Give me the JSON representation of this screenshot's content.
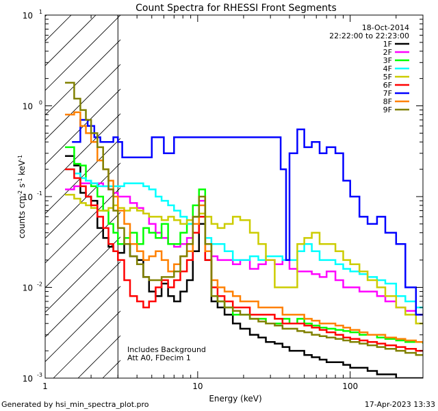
{
  "chart_data": {
    "type": "line",
    "title": "Count Spectra for RHESSI Front Segments",
    "xlabel": "Energy (keV)",
    "ylabel": "counts cm-2 s-1 keV-1",
    "xscale": "log",
    "yscale": "log",
    "xlim": [
      1,
      300
    ],
    "ylim": [
      0.001,
      10
    ],
    "x_ticks": [
      {
        "value": 1,
        "label": "1"
      },
      {
        "value": 10,
        "label": "10"
      },
      {
        "value": 100,
        "label": "100"
      }
    ],
    "y_ticks": [
      {
        "value": 10,
        "label": "10",
        "exp": "1"
      },
      {
        "value": 1,
        "label": "10",
        "exp": "0"
      },
      {
        "value": 0.1,
        "label": "10",
        "exp": "-1"
      },
      {
        "value": 0.01,
        "label": "10",
        "exp": "-2"
      },
      {
        "value": 0.001,
        "label": "10",
        "exp": "-3"
      }
    ],
    "date": "18-Oct-2014",
    "time_range": "22:22:00 to 22:23:00",
    "shaded_region_keV": [
      1,
      3
    ],
    "annotations": [
      "Includes Background",
      "Att A0, FDecim 1"
    ],
    "series": [
      {
        "name": "1F",
        "color": "#000000",
        "x": [
          1.35,
          1.55,
          1.7,
          1.85,
          2.0,
          2.2,
          2.4,
          2.6,
          2.8,
          3.0,
          3.3,
          3.6,
          4.0,
          4.4,
          4.8,
          5.3,
          5.8,
          6.4,
          7.0,
          7.7,
          8.5,
          9.3,
          10.2,
          11.2,
          12.3,
          13.5,
          15,
          17,
          19,
          22,
          25,
          28,
          32,
          36,
          40,
          45,
          50,
          56,
          63,
          70,
          80,
          90,
          100,
          115,
          130,
          150,
          170,
          200,
          230,
          270,
          300
        ],
        "y": [
          0.28,
          0.22,
          0.11,
          0.1,
          0.09,
          0.045,
          0.035,
          0.028,
          0.025,
          0.024,
          0.03,
          0.022,
          0.02,
          0.013,
          0.009,
          0.008,
          0.011,
          0.008,
          0.007,
          0.009,
          0.012,
          0.025,
          0.05,
          0.02,
          0.007,
          0.006,
          0.005,
          0.004,
          0.0035,
          0.003,
          0.0028,
          0.0025,
          0.0024,
          0.0022,
          0.002,
          0.002,
          0.0018,
          0.0017,
          0.0016,
          0.0015,
          0.0015,
          0.0014,
          0.0013,
          0.0013,
          0.0012,
          0.0011,
          0.0011,
          0.001,
          0.001,
          0.001,
          0.001
        ]
      },
      {
        "name": "2F",
        "color": "#ff00ff",
        "x": [
          1.35,
          1.55,
          1.7,
          1.85,
          2.0,
          2.2,
          2.4,
          2.6,
          2.8,
          3.0,
          3.3,
          3.6,
          4.0,
          4.4,
          4.8,
          5.3,
          5.8,
          6.4,
          7.0,
          7.7,
          8.5,
          9.3,
          10.2,
          11.2,
          12.3,
          13.5,
          15,
          17,
          19,
          22,
          25,
          28,
          32,
          36,
          40,
          45,
          50,
          56,
          63,
          70,
          80,
          90,
          100,
          115,
          130,
          150,
          170,
          200,
          230,
          270,
          300
        ],
        "y": [
          0.12,
          0.13,
          0.14,
          0.14,
          0.14,
          0.14,
          0.13,
          0.12,
          0.11,
          0.1,
          0.1,
          0.085,
          0.075,
          0.065,
          0.05,
          0.04,
          0.035,
          0.03,
          0.028,
          0.03,
          0.035,
          0.06,
          0.09,
          0.025,
          0.022,
          0.02,
          0.02,
          0.018,
          0.02,
          0.016,
          0.018,
          0.02,
          0.018,
          0.02,
          0.016,
          0.015,
          0.015,
          0.014,
          0.013,
          0.015,
          0.012,
          0.01,
          0.01,
          0.009,
          0.009,
          0.008,
          0.007,
          0.006,
          0.0055,
          0.005,
          0.005
        ]
      },
      {
        "name": "3F",
        "color": "#00ff00",
        "x": [
          1.35,
          1.55,
          1.7,
          1.85,
          2.0,
          2.2,
          2.4,
          2.6,
          2.8,
          3.0,
          3.3,
          3.6,
          4.0,
          4.4,
          4.8,
          5.3,
          5.8,
          6.4,
          7.0,
          7.7,
          8.5,
          9.3,
          10.2,
          11.2,
          12.3,
          13.5,
          15,
          17,
          19,
          22,
          25,
          28,
          32,
          36,
          40,
          45,
          50,
          56,
          63,
          70,
          80,
          90,
          100,
          115,
          130,
          150,
          170,
          200,
          230,
          270,
          300
        ],
        "y": [
          0.35,
          0.23,
          0.22,
          0.15,
          0.13,
          0.1,
          0.07,
          0.05,
          0.04,
          0.03,
          0.035,
          0.04,
          0.03,
          0.045,
          0.04,
          0.035,
          0.05,
          0.03,
          0.03,
          0.04,
          0.05,
          0.08,
          0.12,
          0.03,
          0.008,
          0.007,
          0.006,
          0.005,
          0.005,
          0.0045,
          0.0045,
          0.004,
          0.004,
          0.0045,
          0.004,
          0.0045,
          0.004,
          0.0038,
          0.0036,
          0.0035,
          0.0034,
          0.0033,
          0.0032,
          0.003,
          0.003,
          0.0028,
          0.0027,
          0.0026,
          0.0025,
          0.0025,
          0.0024
        ]
      },
      {
        "name": "4F",
        "color": "#00ffff",
        "x": [
          1.35,
          1.55,
          1.7,
          1.85,
          2.0,
          2.2,
          2.4,
          2.6,
          2.8,
          3.0,
          3.3,
          3.6,
          4.0,
          4.4,
          4.8,
          5.3,
          5.8,
          6.4,
          7.0,
          7.7,
          8.5,
          9.3,
          10.2,
          11.2,
          12.3,
          13.5,
          15,
          17,
          19,
          22,
          25,
          28,
          32,
          36,
          40,
          45,
          50,
          56,
          63,
          70,
          80,
          90,
          100,
          115,
          130,
          150,
          170,
          200,
          230,
          270,
          300
        ],
        "y": [
          0.2,
          0.18,
          0.16,
          0.15,
          0.14,
          0.13,
          0.13,
          0.13,
          0.13,
          0.13,
          0.14,
          0.14,
          0.14,
          0.13,
          0.12,
          0.1,
          0.09,
          0.08,
          0.07,
          0.06,
          0.05,
          0.06,
          0.08,
          0.035,
          0.03,
          0.03,
          0.025,
          0.02,
          0.02,
          0.022,
          0.02,
          0.022,
          0.022,
          0.02,
          0.02,
          0.025,
          0.03,
          0.025,
          0.02,
          0.02,
          0.018,
          0.016,
          0.015,
          0.014,
          0.013,
          0.012,
          0.011,
          0.008,
          0.007,
          0.006,
          0.006
        ]
      },
      {
        "name": "5F",
        "color": "#cccc00",
        "x": [
          1.35,
          1.55,
          1.7,
          1.85,
          2.0,
          2.2,
          2.4,
          2.6,
          2.8,
          3.0,
          3.3,
          3.6,
          4.0,
          4.4,
          4.8,
          5.3,
          5.8,
          6.4,
          7.0,
          7.7,
          8.5,
          9.3,
          10.2,
          11.2,
          12.3,
          13.5,
          15,
          17,
          19,
          22,
          25,
          28,
          32,
          36,
          40,
          45,
          50,
          56,
          63,
          70,
          80,
          90,
          100,
          115,
          130,
          150,
          170,
          200,
          230,
          270,
          300
        ],
        "y": [
          0.105,
          0.095,
          0.085,
          0.08,
          0.075,
          0.07,
          0.07,
          0.075,
          0.08,
          0.075,
          0.07,
          0.075,
          0.07,
          0.065,
          0.06,
          0.06,
          0.055,
          0.06,
          0.055,
          0.05,
          0.055,
          0.06,
          0.065,
          0.06,
          0.05,
          0.045,
          0.05,
          0.06,
          0.055,
          0.04,
          0.03,
          0.02,
          0.01,
          0.01,
          0.01,
          0.03,
          0.035,
          0.04,
          0.03,
          0.03,
          0.025,
          0.02,
          0.018,
          0.015,
          0.012,
          0.01,
          0.008,
          0.006,
          0.005,
          0.004,
          0.004
        ]
      },
      {
        "name": "6F",
        "color": "#ff0000",
        "x": [
          1.35,
          1.55,
          1.7,
          1.85,
          2.0,
          2.2,
          2.4,
          2.6,
          2.8,
          3.0,
          3.3,
          3.6,
          4.0,
          4.4,
          4.8,
          5.3,
          5.8,
          6.4,
          7.0,
          7.7,
          8.5,
          9.3,
          10.2,
          11.2,
          12.3,
          13.5,
          15,
          17,
          19,
          22,
          25,
          28,
          32,
          36,
          40,
          45,
          50,
          56,
          63,
          70,
          80,
          90,
          100,
          115,
          130,
          150,
          170,
          200,
          230,
          270,
          300
        ],
        "y": [
          0.2,
          0.16,
          0.13,
          0.1,
          0.08,
          0.06,
          0.045,
          0.03,
          0.025,
          0.02,
          0.012,
          0.008,
          0.007,
          0.006,
          0.007,
          0.01,
          0.012,
          0.01,
          0.012,
          0.015,
          0.02,
          0.04,
          0.06,
          0.02,
          0.01,
          0.008,
          0.007,
          0.006,
          0.006,
          0.005,
          0.005,
          0.005,
          0.0045,
          0.004,
          0.004,
          0.004,
          0.0038,
          0.0036,
          0.0034,
          0.0032,
          0.003,
          0.0028,
          0.0027,
          0.0026,
          0.0025,
          0.0024,
          0.0023,
          0.0022,
          0.0021,
          0.002,
          0.002
        ]
      },
      {
        "name": "7F",
        "color": "#0000ff",
        "x": [
          1.5,
          1.7,
          1.9,
          2.1,
          2.3,
          2.6,
          2.8,
          3.0,
          3.2,
          5.0,
          5.5,
          6.0,
          7.0,
          35,
          38,
          40,
          45,
          50,
          56,
          63,
          70,
          80,
          90,
          100,
          115,
          130,
          150,
          170,
          200,
          230,
          270,
          300
        ],
        "y": [
          0.4,
          0.7,
          0.6,
          0.45,
          0.4,
          0.4,
          0.45,
          0.4,
          0.27,
          0.45,
          0.45,
          0.3,
          0.45,
          0.2,
          0.02,
          0.3,
          0.55,
          0.35,
          0.4,
          0.3,
          0.35,
          0.3,
          0.15,
          0.1,
          0.06,
          0.05,
          0.06,
          0.04,
          0.03,
          0.01,
          0.005,
          0.005
        ]
      },
      {
        "name": "8F",
        "color": "#ff8000",
        "x": [
          1.35,
          1.55,
          1.7,
          1.85,
          2.0,
          2.2,
          2.4,
          2.6,
          2.8,
          3.0,
          3.3,
          3.6,
          4.0,
          4.4,
          4.8,
          5.3,
          5.8,
          6.4,
          7.0,
          7.7,
          8.5,
          9.3,
          10.2,
          11.2,
          12.3,
          13.5,
          15,
          17,
          19,
          22,
          25,
          28,
          32,
          36,
          40,
          45,
          50,
          56,
          63,
          70,
          80,
          90,
          100,
          115,
          130,
          150,
          170,
          200,
          230,
          270,
          300
        ],
        "y": [
          0.8,
          0.85,
          0.6,
          0.5,
          0.4,
          0.25,
          0.2,
          0.15,
          0.1,
          0.07,
          0.05,
          0.03,
          0.025,
          0.02,
          0.022,
          0.025,
          0.02,
          0.015,
          0.018,
          0.022,
          0.025,
          0.05,
          0.08,
          0.025,
          0.012,
          0.01,
          0.009,
          0.008,
          0.007,
          0.007,
          0.006,
          0.006,
          0.006,
          0.005,
          0.005,
          0.005,
          0.0045,
          0.0043,
          0.004,
          0.004,
          0.0038,
          0.0036,
          0.0034,
          0.0032,
          0.003,
          0.003,
          0.0028,
          0.0027,
          0.0026,
          0.0025,
          0.0025
        ]
      },
      {
        "name": "9F",
        "color": "#808000",
        "x": [
          1.35,
          1.55,
          1.7,
          1.85,
          2.0,
          2.2,
          2.4,
          2.6,
          2.8,
          3.0,
          3.3,
          3.6,
          4.0,
          4.4,
          4.8,
          5.3,
          5.8,
          6.4,
          7.0,
          7.7,
          8.5,
          9.3,
          10.2,
          11.2,
          12.3,
          13.5,
          15,
          17,
          19,
          22,
          25,
          28,
          32,
          36,
          40,
          45,
          50,
          56,
          63,
          70,
          80,
          90,
          100,
          115,
          130,
          150,
          170,
          200,
          230,
          270,
          300
        ],
        "y": [
          1.8,
          1.2,
          0.9,
          0.7,
          0.5,
          0.35,
          0.2,
          0.12,
          0.07,
          0.045,
          0.03,
          0.022,
          0.018,
          0.013,
          0.012,
          0.012,
          0.013,
          0.013,
          0.015,
          0.022,
          0.03,
          0.06,
          0.1,
          0.03,
          0.008,
          0.007,
          0.006,
          0.0055,
          0.005,
          0.0045,
          0.0042,
          0.004,
          0.0038,
          0.0035,
          0.0035,
          0.0033,
          0.0032,
          0.003,
          0.0029,
          0.0028,
          0.0027,
          0.0026,
          0.0025,
          0.0024,
          0.0023,
          0.0022,
          0.0021,
          0.002,
          0.0019,
          0.0018,
          0.0018
        ]
      }
    ]
  },
  "footer": {
    "generated_by": "Generated by hsi_min_spectra_plot.pro",
    "timestamp": "17-Apr-2023 13:33"
  }
}
